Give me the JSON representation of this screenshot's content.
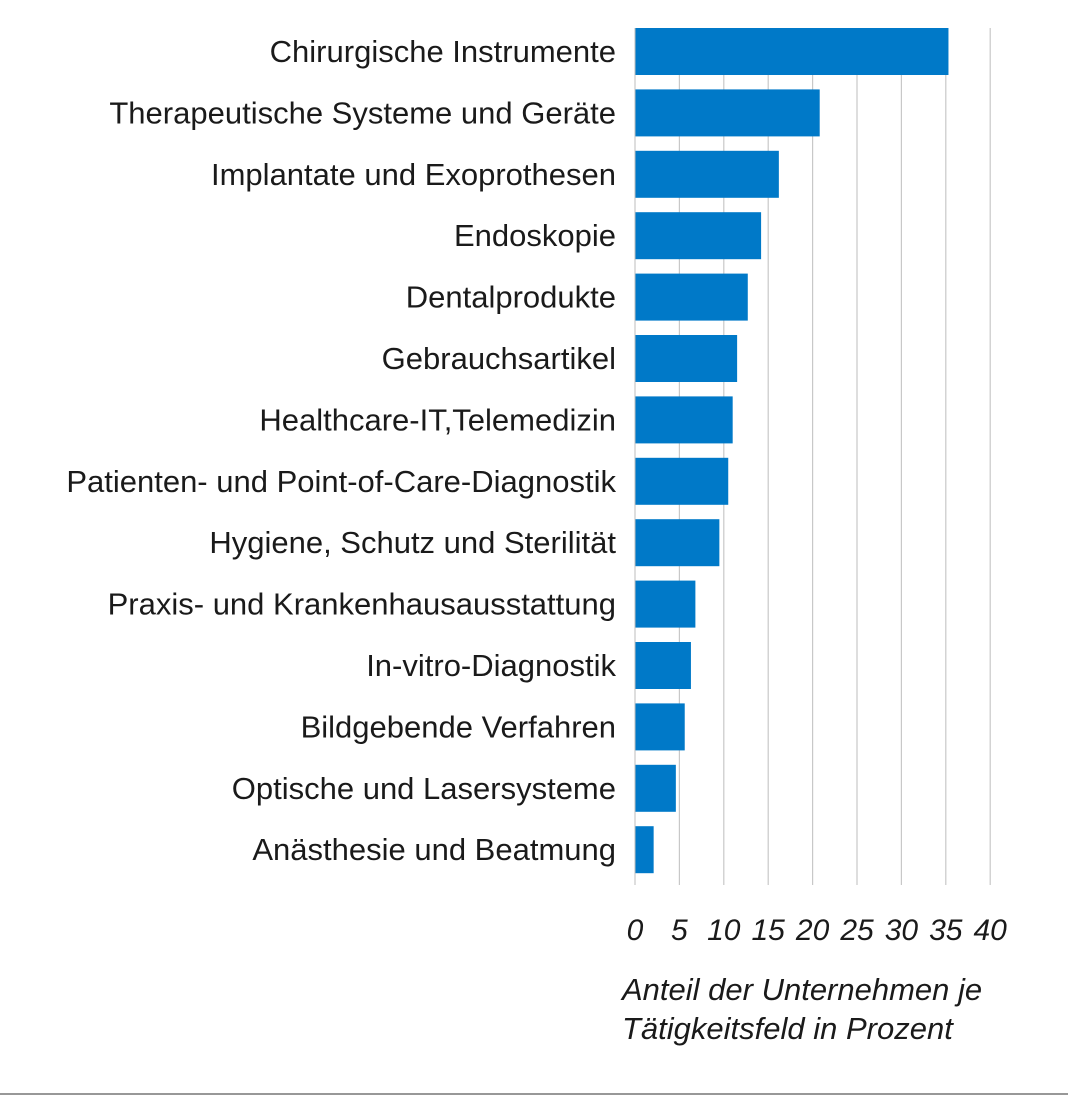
{
  "chart_data": {
    "type": "bar",
    "orientation": "horizontal",
    "categories": [
      "Chirurgische Instrumente",
      "Therapeutische Systeme und Geräte",
      "Implantate und Exoprothesen",
      "Endoskopie",
      "Dentalprodukte",
      "Gebrauchsartikel",
      "Healthcare-IT,Telemedizin",
      "Patienten- und Point-of-Care-Diagnostik",
      "Hygiene, Schutz und Sterilität",
      "Praxis- und Krankenhausausstattung",
      "In-vitro-Diagnostik",
      "Bildgebende Verfahren",
      "Optische und Lasersysteme",
      "Anästhesie und Beatmung"
    ],
    "values": [
      35.3,
      20.8,
      16.2,
      14.2,
      12.7,
      11.5,
      11.0,
      10.5,
      9.5,
      6.8,
      6.3,
      5.6,
      4.6,
      2.1
    ],
    "xlim": [
      0,
      40
    ],
    "xticks": [
      "0",
      "5",
      "10",
      "15",
      "20",
      "25",
      "30",
      "35",
      "40"
    ],
    "xlabel_lines": [
      "Anteil der Unternehmen je",
      "Tätigkeitsfeld in Prozent"
    ],
    "bar_color": "#0079c8",
    "grid": "vertical",
    "gridline_color": "#c8c8c8"
  }
}
